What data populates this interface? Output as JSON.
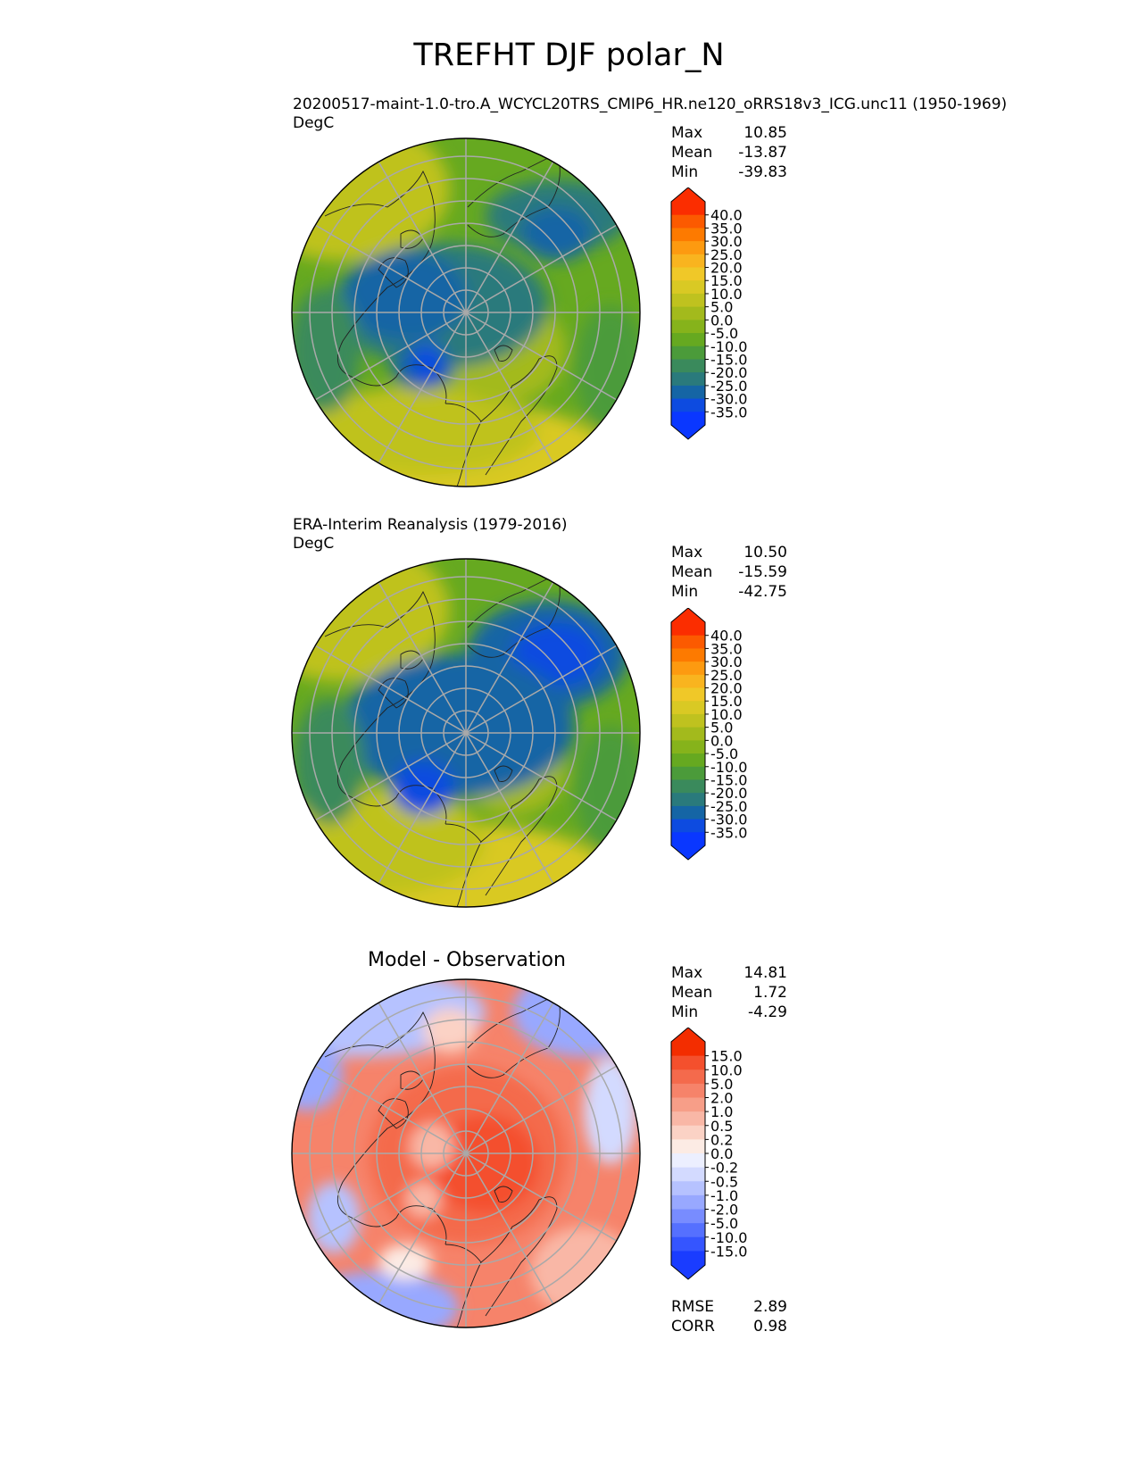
{
  "title": "TREFHT DJF polar_N",
  "panels": [
    {
      "id": "test",
      "name": "20200517-maint-1.0-tro.A_WCYCL20TRS_CMIP6_HR.ne120_oRRS18v3_ICG.unc11 (1950-1969)",
      "units": "DegC",
      "stats": {
        "max_label": "Max",
        "max": "10.85",
        "mean_label": "Mean",
        "mean": "-13.87",
        "min_label": "Min",
        "min": "-39.83"
      },
      "colorbar": {
        "labels": [
          "40.0",
          "35.0",
          "30.0",
          "25.0",
          "20.0",
          "15.0",
          "10.0",
          "5.0",
          "0.0",
          "-5.0",
          "-10.0",
          "-15.0",
          "-20.0",
          "-25.0",
          "-30.0",
          "-35.0"
        ],
        "colors": [
          "#fb2d00",
          "#fc5a00",
          "#fd7a00",
          "#fd9a10",
          "#f9b41f",
          "#f0c828",
          "#d9c924",
          "#bfc21f",
          "#a3ba1c",
          "#86b31b",
          "#66a920",
          "#4b9b3a",
          "#3a8a5c",
          "#2a7a7c",
          "#1565a5",
          "#0d4be0",
          "#0a37ff"
        ],
        "max_color": "#fb2d00",
        "min_color": "#0a37ff"
      }
    },
    {
      "id": "reference",
      "name": "ERA-Interim Reanalysis (1979-2016)",
      "units": "DegC",
      "stats": {
        "max_label": "Max",
        "max": "10.50",
        "mean_label": "Mean",
        "mean": "-15.59",
        "min_label": "Min",
        "min": "-42.75"
      },
      "colorbar": {
        "labels": [
          "40.0",
          "35.0",
          "30.0",
          "25.0",
          "20.0",
          "15.0",
          "10.0",
          "5.0",
          "0.0",
          "-5.0",
          "-10.0",
          "-15.0",
          "-20.0",
          "-25.0",
          "-30.0",
          "-35.0"
        ],
        "colors": [
          "#fb2d00",
          "#fc5a00",
          "#fd7a00",
          "#fd9a10",
          "#f9b41f",
          "#f0c828",
          "#d9c924",
          "#bfc21f",
          "#a3ba1c",
          "#86b31b",
          "#66a920",
          "#4b9b3a",
          "#3a8a5c",
          "#2a7a7c",
          "#1565a5",
          "#0d4be0",
          "#0a37ff"
        ],
        "max_color": "#fb2d00",
        "min_color": "#0a37ff"
      }
    },
    {
      "id": "difference",
      "name": "Model - Observation",
      "units": "",
      "stats": {
        "max_label": "Max",
        "max": "14.81",
        "mean_label": "Mean",
        "mean": "1.72",
        "min_label": "Min",
        "min": "-4.29"
      },
      "metrics": {
        "rmse_label": "RMSE",
        "rmse": "2.89",
        "corr_label": "CORR",
        "corr": "0.98"
      },
      "colorbar": {
        "labels": [
          "15.0",
          "10.0",
          "5.0",
          "2.0",
          "1.0",
          "0.5",
          "0.2",
          "0.0",
          "-0.2",
          "-0.5",
          "-1.0",
          "-2.0",
          "-5.0",
          "-10.0",
          "-15.0"
        ],
        "colors": [
          "#f32d00",
          "#f4502d",
          "#f46a4c",
          "#f6836a",
          "#f79e88",
          "#f9b7a6",
          "#fbd2c5",
          "#fcebe4",
          "#ecefff",
          "#d3daff",
          "#b6c2ff",
          "#98a8ff",
          "#788cff",
          "#5570ff",
          "#3555ff",
          "#1a3cff"
        ],
        "max_color": "#f32d00",
        "min_color": "#1a3cff"
      }
    }
  ]
}
